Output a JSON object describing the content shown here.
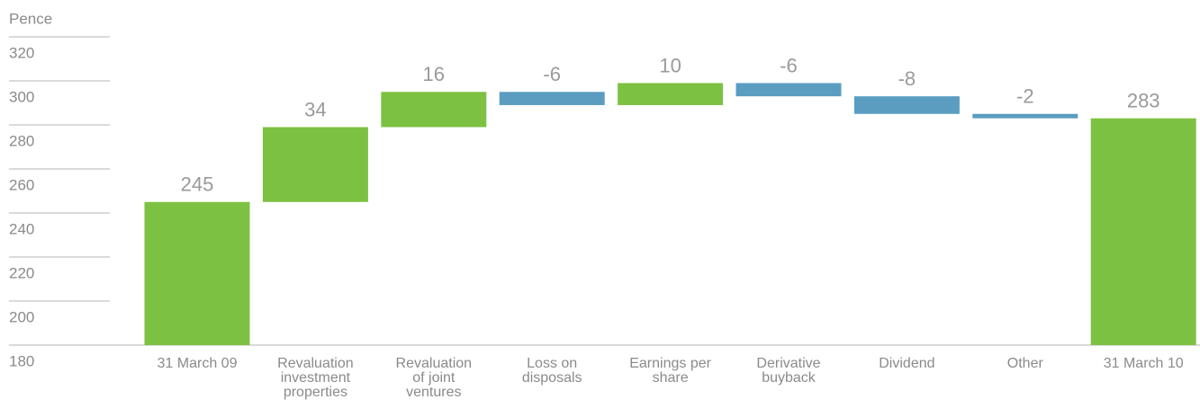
{
  "chart_data": {
    "type": "waterfall",
    "y_label": "Pence",
    "categories": [
      "31 March 09",
      "Revaluation investment properties",
      "Revaluation of joint ventures",
      "Loss on disposals",
      "Earnings per share",
      "Derivative buyback",
      "Dividend",
      "Other",
      "31 March 10"
    ],
    "values": [
      245,
      34,
      16,
      -6,
      10,
      -6,
      -8,
      -2,
      283
    ],
    "is_total": [
      true,
      false,
      false,
      false,
      false,
      false,
      false,
      false,
      true
    ],
    "colors": [
      "#7dc142",
      "#7dc142",
      "#7dc142",
      "#5a9dc0",
      "#7dc142",
      "#5a9dc0",
      "#5a9dc0",
      "#5a9dc0",
      "#7dc142"
    ],
    "ylim": [
      180,
      320
    ],
    "yticks": [
      180,
      200,
      220,
      240,
      260,
      280,
      300,
      320
    ],
    "grid": true
  }
}
